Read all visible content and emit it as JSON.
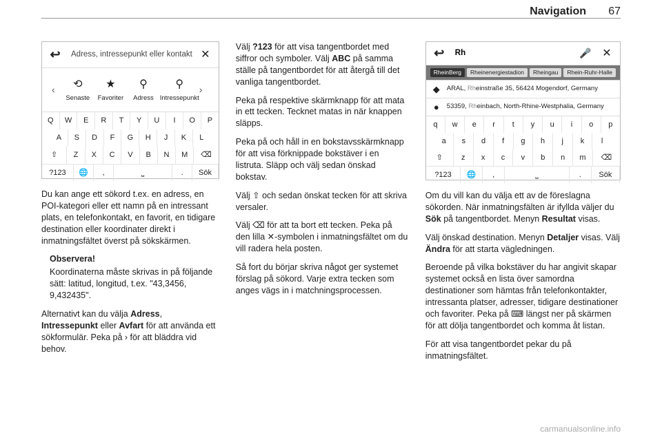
{
  "header": {
    "title": "Navigation",
    "page": "67"
  },
  "shot1": {
    "placeholder": "Adress, intressepunkt eller kontakt",
    "cats": [
      {
        "icon": "⟲",
        "label": "Senaste"
      },
      {
        "icon": "★",
        "label": "Favoriter"
      },
      {
        "icon": "⚲",
        "label": "Adress"
      },
      {
        "icon": "⚲",
        "label": "Intressepunkt"
      }
    ],
    "rows": [
      [
        "Q",
        "W",
        "E",
        "R",
        "T",
        "Y",
        "U",
        "I",
        "O",
        "P"
      ],
      [
        "A",
        "S",
        "D",
        "F",
        "G",
        "H",
        "J",
        "K",
        "L"
      ],
      [
        "⇧",
        "Z",
        "X",
        "C",
        "V",
        "B",
        "N",
        "M",
        "⌫"
      ]
    ],
    "bottom": {
      "mode": "?123",
      "globe": "🌐",
      "comma": ",",
      "dot": ".",
      "search": "Sök"
    }
  },
  "col1": {
    "p1": "Du kan ange ett sökord t.ex. en adress, en POI-kategori eller ett namn på en intressant plats, en tele­fonkontakt, en favorit, en tidigare destination eller koordinater direkt i inmatningsfältet överst på sökskär­men.",
    "noteTitle": "Observera!",
    "note": "Koordinaterna måste skrivas in på följande sätt: latitud, longitud, t.ex. \"43,3456, 9,432435\".",
    "p2a": "Alternativt kan du välja ",
    "p2b": "Adress",
    "p2c": ", ",
    "p2d": "Intressepunkt",
    "p2e": " eller ",
    "p2f": "Avfart",
    "p2g": " för att använda ett sökformulär. Peka på ",
    "p2h": "›",
    "p2i": " för att bläddra vid behov."
  },
  "col2": {
    "p1a": "Välj ",
    "p1b": "?123",
    "p1c": " för att visa tangentbordet med siffror och symboler. Välj ",
    "p1d": "ABC",
    "p1e": " på samma ställe på tangentbordet för att återgå till det vanliga tangentbordet.",
    "p2": "Peka på respektive skärmknapp för att mata in ett tecken. Tecknet matas in när knappen släpps.",
    "p3": "Peka på och håll in en bokstavs­skärmknapp för att visa förknippade bokstäver i en listruta. Släpp och välj sedan önskad bokstav.",
    "p4a": "Välj ",
    "p4b": "⇧",
    "p4c": " och sedan önskat tecken för att skriva versaler.",
    "p5a": "Välj ",
    "p5b": "⌫",
    "p5c": " för att ta bort ett tecken. Peka på den lilla ",
    "p5d": "✕",
    "p5e": "-symbolen i inmatnings­fältet om du vill radera hela posten.",
    "p6": "Så fort du börjar skriva något ger systemet förslag på sökord. Varje extra tecken som anges vägs in i matchningsprocessen."
  },
  "shot2": {
    "query": "Rh",
    "tabs": [
      "RheinBerg",
      "Rheinenergiestadion",
      "Rheingau",
      "Rhein-Ruhr-Halle"
    ],
    "results": [
      {
        "icon": "◆",
        "prefix": "ARAL, ",
        "hl": "Rh",
        "rest": "einstraße 35, 56424 Mogendorf, Germany"
      },
      {
        "icon": "●",
        "prefix": "53359, ",
        "hl": "Rh",
        "rest": "einbach, North-Rhine-Westphalia, Germany"
      }
    ],
    "rows": [
      [
        "q",
        "w",
        "e",
        "r",
        "t",
        "y",
        "u",
        "i",
        "o",
        "p"
      ],
      [
        "a",
        "s",
        "d",
        "f",
        "g",
        "h",
        "j",
        "k",
        "l"
      ],
      [
        "⇧",
        "z",
        "x",
        "c",
        "v",
        "b",
        "n",
        "m",
        "⌫"
      ]
    ],
    "bottom": {
      "mode": "?123",
      "globe": "🌐",
      "comma": ",",
      "dot": ".",
      "search": "Sök"
    }
  },
  "col3": {
    "p1a": "Om du vill kan du välja ett av de före­slagna sökorden. När inmatningsfäl­ten är ifyllda väljer du ",
    "p1b": "Sök",
    "p1c": " på tangent­bordet. Menyn ",
    "p1d": "Resultat",
    "p1e": " visas.",
    "p2a": "Välj önskad destination. Menyn ",
    "p2b": "Detaljer",
    "p2c": " visas. Välj ",
    "p2d": "Ändra",
    "p2e": " för att starta vägledningen.",
    "p3a": "Beroende på vilka bokstäver du har angivit skapar systemet också en lista över samordna destinationer som hämtas från telefonkontakter, intres­santa platser, adresser, tidigare desti­nationer och favoriter. Peka på ",
    "p3b": "⌨",
    "p3c": " längst ner på skärmen för att dölja tangentbordet och komma åt listan.",
    "p4": "För att visa tangentbordet pekar du på inmatningsfältet."
  },
  "footer": "carmanualsonline.info"
}
